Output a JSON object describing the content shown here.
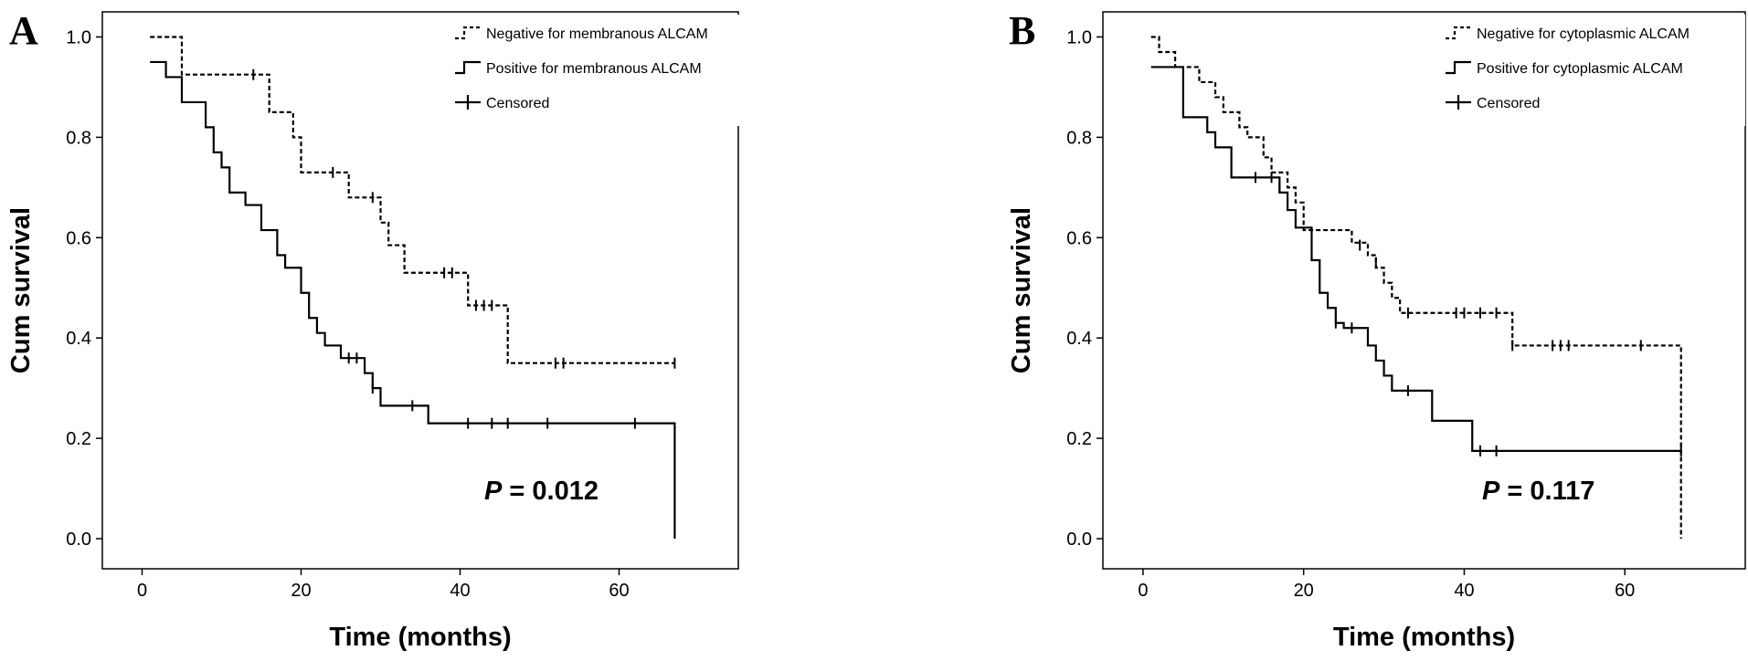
{
  "chart_data": [
    {
      "panel": "A",
      "type": "line",
      "subtype": "kaplan-meier",
      "xlabel": "Time (months)",
      "ylabel": "Cum survival",
      "xlim": [
        -5,
        75
      ],
      "ylim": [
        -0.06,
        1.05
      ],
      "xticks": [
        0,
        20,
        40,
        60
      ],
      "yticks": [
        0.0,
        0.2,
        0.4,
        0.6,
        0.8,
        1.0
      ],
      "ytick_labels": [
        "0.0",
        "0.2",
        "0.4",
        "0.6",
        "0.8",
        "1.0"
      ],
      "grid": false,
      "legend": "top-right",
      "legend_censored_label": "Censored",
      "annotation_p_label": "P",
      "annotation_p_value": "= 0.012",
      "series": [
        {
          "name": "Negative for membranous ALCAM",
          "style": "dashed",
          "steps": [
            [
              1,
              1.0
            ],
            [
              5,
              0.925
            ],
            [
              16,
              0.85
            ],
            [
              19,
              0.8
            ],
            [
              20,
              0.73
            ],
            [
              26,
              0.68
            ],
            [
              30,
              0.63
            ],
            [
              31,
              0.585
            ],
            [
              33,
              0.53
            ],
            [
              41,
              0.465
            ],
            [
              46,
              0.35
            ],
            [
              67,
              0.35
            ]
          ],
          "censored": [
            [
              14,
              0.925
            ],
            [
              24,
              0.73
            ],
            [
              29,
              0.68
            ],
            [
              38,
              0.53
            ],
            [
              39,
              0.53
            ],
            [
              42,
              0.465
            ],
            [
              43,
              0.465
            ],
            [
              44,
              0.465
            ],
            [
              52,
              0.35
            ],
            [
              53,
              0.35
            ],
            [
              67,
              0.35
            ]
          ]
        },
        {
          "name": "Positive for membranous ALCAM",
          "style": "solid",
          "steps": [
            [
              1,
              0.95
            ],
            [
              3,
              0.92
            ],
            [
              5,
              0.87
            ],
            [
              8,
              0.82
            ],
            [
              9,
              0.77
            ],
            [
              10,
              0.74
            ],
            [
              11,
              0.69
            ],
            [
              13,
              0.665
            ],
            [
              15,
              0.615
            ],
            [
              17,
              0.565
            ],
            [
              18,
              0.54
            ],
            [
              20,
              0.49
            ],
            [
              21,
              0.44
            ],
            [
              22,
              0.41
            ],
            [
              23,
              0.385
            ],
            [
              25,
              0.36
            ],
            [
              28,
              0.33
            ],
            [
              29,
              0.3
            ],
            [
              30,
              0.265
            ],
            [
              36,
              0.23
            ],
            [
              67,
              0.23
            ],
            [
              67,
              0.0
            ]
          ],
          "censored": [
            [
              26,
              0.36
            ],
            [
              27,
              0.36
            ],
            [
              29,
              0.3
            ],
            [
              34,
              0.265
            ],
            [
              41,
              0.23
            ],
            [
              44,
              0.23
            ],
            [
              46,
              0.23
            ],
            [
              51,
              0.23
            ],
            [
              62,
              0.23
            ]
          ]
        }
      ]
    },
    {
      "panel": "B",
      "type": "line",
      "subtype": "kaplan-meier",
      "xlabel": "Time (months)",
      "ylabel": "Cum survival",
      "xlim": [
        -5,
        75
      ],
      "ylim": [
        -0.06,
        1.05
      ],
      "xticks": [
        0,
        20,
        40,
        60
      ],
      "yticks": [
        0.0,
        0.2,
        0.4,
        0.6,
        0.8,
        1.0
      ],
      "ytick_labels": [
        "0.0",
        "0.2",
        "0.4",
        "0.6",
        "0.8",
        "1.0"
      ],
      "grid": false,
      "legend": "top-right",
      "legend_censored_label": "Censored",
      "annotation_p_label": "P",
      "annotation_p_value": "= 0.117",
      "series": [
        {
          "name": "Negative for cytoplasmic ALCAM",
          "style": "dashed",
          "steps": [
            [
              1,
              1.0
            ],
            [
              2,
              0.97
            ],
            [
              4,
              0.94
            ],
            [
              7,
              0.91
            ],
            [
              9,
              0.88
            ],
            [
              10,
              0.85
            ],
            [
              12,
              0.82
            ],
            [
              13,
              0.8
            ],
            [
              15,
              0.76
            ],
            [
              16,
              0.73
            ],
            [
              18,
              0.7
            ],
            [
              19,
              0.67
            ],
            [
              20,
              0.615
            ],
            [
              26,
              0.59
            ],
            [
              28,
              0.565
            ],
            [
              29,
              0.54
            ],
            [
              30,
              0.51
            ],
            [
              31,
              0.48
            ],
            [
              32,
              0.45
            ],
            [
              46,
              0.385
            ],
            [
              67,
              0.385
            ],
            [
              67,
              0.0
            ]
          ],
          "censored": [
            [
              17,
              0.7
            ],
            [
              27,
              0.585
            ],
            [
              29,
              0.55
            ],
            [
              33,
              0.45
            ],
            [
              39,
              0.45
            ],
            [
              40,
              0.45
            ],
            [
              42,
              0.45
            ],
            [
              44,
              0.45
            ],
            [
              46,
              0.385
            ],
            [
              51,
              0.385
            ],
            [
              52,
              0.385
            ],
            [
              53,
              0.385
            ],
            [
              62,
              0.385
            ]
          ]
        },
        {
          "name": "Positive for cytoplasmic ALCAM",
          "style": "solid",
          "steps": [
            [
              1,
              0.94
            ],
            [
              5,
              0.84
            ],
            [
              8,
              0.81
            ],
            [
              9,
              0.78
            ],
            [
              11,
              0.72
            ],
            [
              17,
              0.69
            ],
            [
              18,
              0.655
            ],
            [
              19,
              0.62
            ],
            [
              21,
              0.555
            ],
            [
              22,
              0.49
            ],
            [
              23,
              0.46
            ],
            [
              24,
              0.43
            ],
            [
              25,
              0.42
            ],
            [
              28,
              0.385
            ],
            [
              29,
              0.355
            ],
            [
              30,
              0.325
            ],
            [
              31,
              0.295
            ],
            [
              36,
              0.235
            ],
            [
              41,
              0.175
            ],
            [
              67,
              0.175
            ]
          ],
          "censored": [
            [
              14,
              0.72
            ],
            [
              16,
              0.72
            ],
            [
              24,
              0.43
            ],
            [
              26,
              0.42
            ],
            [
              30,
              0.345
            ],
            [
              33,
              0.295
            ],
            [
              42,
              0.175
            ],
            [
              44,
              0.175
            ],
            [
              67,
              0.175
            ]
          ]
        }
      ]
    }
  ],
  "panels": [
    {
      "letter": "A"
    },
    {
      "letter": "B"
    }
  ]
}
